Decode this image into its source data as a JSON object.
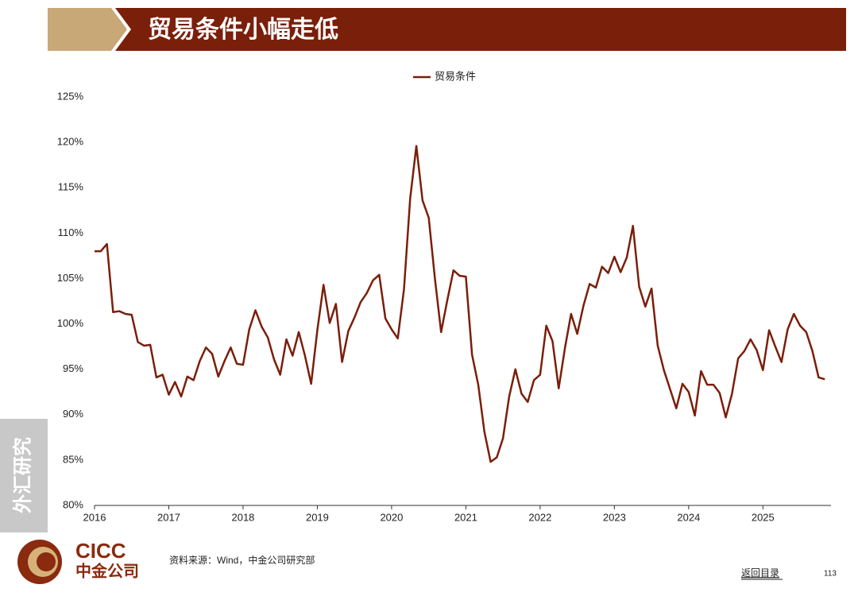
{
  "header": {
    "title": "贸易条件小幅走低"
  },
  "sidebar": "外汇研究",
  "logo": {
    "en": "CICC",
    "cn": "中金公司"
  },
  "source": "资料来源：Wind，中金公司研究部",
  "nav": "返回目录",
  "page_number": "113",
  "chart_data": {
    "type": "line",
    "categories": [
      "2016",
      null,
      null,
      null,
      null,
      null,
      null,
      null,
      null,
      null,
      null,
      null,
      "2017",
      null,
      null,
      null,
      null,
      null,
      null,
      null,
      null,
      null,
      null,
      null,
      "2018",
      null,
      null,
      null,
      null,
      null,
      null,
      null,
      null,
      null,
      null,
      null,
      "2019",
      null,
      null,
      null,
      null,
      null,
      null,
      null,
      null,
      null,
      null,
      null,
      "2020",
      null,
      null,
      null,
      null,
      null,
      null,
      null,
      null,
      null,
      null,
      null,
      "2021",
      null,
      null,
      null,
      null,
      null,
      null,
      null,
      null,
      null,
      null,
      null,
      "2022",
      null,
      null,
      null,
      null,
      null,
      null,
      null,
      null,
      null,
      null,
      null,
      "2023",
      null,
      null,
      null,
      null,
      null,
      null,
      null,
      null,
      null,
      null,
      null,
      "2024",
      null,
      null,
      null,
      null,
      null,
      null,
      null,
      null,
      null,
      null,
      null,
      "2025",
      null,
      null,
      null,
      null,
      null,
      null,
      null,
      null,
      null,
      null
    ],
    "series": [
      {
        "name": "贸易条件",
        "color": "#7b1e0b",
        "values": [
          108.0,
          108.0,
          108.8,
          101.3,
          101.4,
          101.1,
          101.0,
          98.0,
          97.6,
          97.7,
          94.1,
          94.4,
          92.2,
          93.6,
          92.0,
          94.2,
          93.8,
          95.9,
          97.4,
          96.7,
          94.2,
          95.9,
          97.4,
          95.6,
          95.5,
          99.4,
          101.5,
          99.7,
          98.5,
          96.1,
          94.4,
          98.3,
          96.5,
          99.1,
          96.5,
          93.4,
          99.3,
          104.3,
          100.1,
          102.2,
          95.8,
          99.2,
          100.7,
          102.4,
          103.4,
          104.8,
          105.4,
          100.6,
          99.4,
          98.4,
          103.8,
          113.8,
          119.6,
          113.6,
          111.7,
          105.0,
          99.1,
          102.6,
          105.9,
          105.3,
          105.2,
          96.6,
          93.3,
          88.1,
          84.8,
          85.3,
          87.4,
          92.0,
          95.0,
          92.3,
          91.4,
          93.8,
          94.4,
          99.8,
          98.1,
          92.9,
          97.3,
          101.1,
          98.9,
          102.0,
          104.4,
          104.0,
          106.3,
          105.6,
          107.4,
          105.7,
          107.3,
          110.8,
          104.1,
          101.9,
          103.9,
          97.6,
          94.9,
          92.8,
          90.7,
          93.4,
          92.5,
          89.9,
          94.8,
          93.3,
          93.3,
          92.4,
          89.7,
          92.3,
          96.2,
          97.0,
          98.3,
          97.1,
          94.9,
          99.3,
          97.5,
          95.8,
          99.4,
          101.1,
          99.8,
          99.1,
          97.0,
          94.1,
          93.9
        ]
      }
    ],
    "ylim": [
      80,
      125
    ],
    "yticks": [
      {
        "value": 80,
        "label": "80%"
      },
      {
        "value": 85,
        "label": "85%"
      },
      {
        "value": 90,
        "label": "90%"
      },
      {
        "value": 95,
        "label": "95%"
      },
      {
        "value": 100,
        "label": "100%"
      },
      {
        "value": 105,
        "label": "105%"
      },
      {
        "value": 110,
        "label": "110%"
      },
      {
        "value": 115,
        "label": "115%"
      },
      {
        "value": 120,
        "label": "120%"
      },
      {
        "value": 125,
        "label": "125%"
      }
    ],
    "grid": false,
    "legend": "top"
  }
}
